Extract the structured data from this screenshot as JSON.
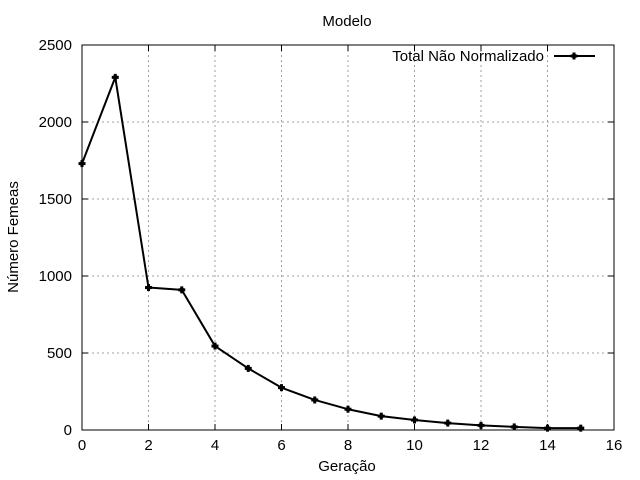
{
  "chart_data": {
    "type": "line",
    "title": "Modelo",
    "xlabel": "Geração",
    "ylabel": "Número Femeas",
    "xlim": [
      0,
      16
    ],
    "ylim": [
      0,
      2500
    ],
    "xticks": [
      "0",
      "2",
      "4",
      "6",
      "8",
      "10",
      "12",
      "14",
      "16"
    ],
    "yticks": [
      "0",
      "500",
      "1000",
      "1500",
      "2000",
      "2500"
    ],
    "grid": true,
    "legend_position": "top-right",
    "series": [
      {
        "name": "Total Não Normalizado",
        "color": "#000000",
        "marker": "plus-filled",
        "x": [
          0,
          1,
          2,
          3,
          4,
          5,
          6,
          7,
          8,
          9,
          10,
          11,
          12,
          13,
          14,
          15
        ],
        "y": [
          1730,
          2290,
          925,
          910,
          545,
          400,
          275,
          195,
          135,
          90,
          65,
          45,
          30,
          20,
          12,
          12
        ]
      }
    ]
  }
}
